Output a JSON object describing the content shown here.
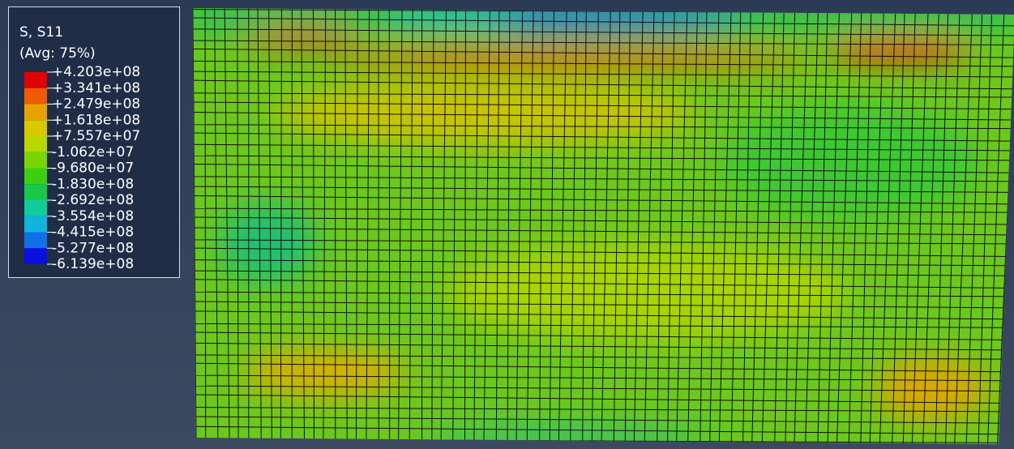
{
  "legend": {
    "title": "S, S11",
    "subtitle": "(Avg: 75%)",
    "labels": [
      "+4.203e+08",
      "+3.341e+08",
      "+2.479e+08",
      "+1.618e+08",
      "+7.557e+07",
      "-1.062e+07",
      "-9.680e+07",
      "-1.830e+08",
      "-2.692e+08",
      "-3.554e+08",
      "-4.415e+08",
      "-5.277e+08",
      "-6.139e+08"
    ],
    "colors": [
      "#e30000",
      "#f05a00",
      "#e8a200",
      "#d8c800",
      "#b8d800",
      "#7ad400",
      "#3ccf10",
      "#18c848",
      "#10cc9a",
      "#10b4dc",
      "#1070e6",
      "#0a10e0"
    ]
  }
}
